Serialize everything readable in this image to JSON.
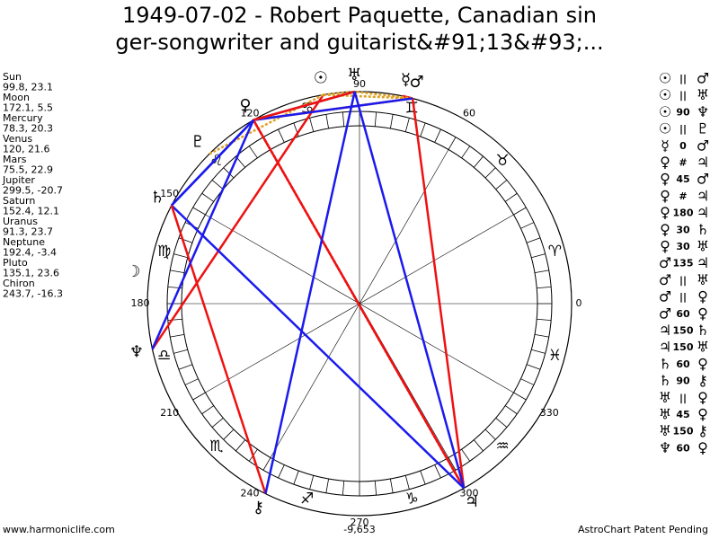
{
  "title_lines": [
    "1949-07-02 - Robert Paquette, Canadian sin",
    "ger-songwriter and guitarist&#91;13&#93;..."
  ],
  "planets": [
    {
      "name": "Sun",
      "glyph": "☉",
      "longitude": 99.8,
      "latitude": 23.1
    },
    {
      "name": "Moon",
      "glyph": "☽",
      "longitude": 172.1,
      "latitude": 5.5
    },
    {
      "name": "Mercury",
      "glyph": "☿",
      "longitude": 78.3,
      "latitude": 20.3
    },
    {
      "name": "Venus",
      "glyph": "♀",
      "longitude": 120.0,
      "latitude": 21.6
    },
    {
      "name": "Mars",
      "glyph": "♂",
      "longitude": 75.5,
      "latitude": 22.9
    },
    {
      "name": "Jupiter",
      "glyph": "♃",
      "longitude": 299.5,
      "latitude": -20.7
    },
    {
      "name": "Saturn",
      "glyph": "♄",
      "longitude": 152.4,
      "latitude": 12.1
    },
    {
      "name": "Uranus",
      "glyph": "♅",
      "longitude": 91.3,
      "latitude": 23.7
    },
    {
      "name": "Neptune",
      "glyph": "♆",
      "longitude": 192.4,
      "latitude": -3.4
    },
    {
      "name": "Pluto",
      "glyph": "♇",
      "longitude": 135.1,
      "latitude": 23.6
    },
    {
      "name": "Chiron",
      "glyph": "⚷",
      "longitude": 243.7,
      "latitude": -16.3
    }
  ],
  "signs": [
    "♈",
    "♉",
    "♊",
    "♋",
    "♌",
    "♍",
    "♎",
    "♏",
    "♐",
    "♑",
    "♒",
    "♓"
  ],
  "degree_labels": [
    0,
    60,
    90,
    120,
    150,
    180,
    210,
    240,
    270,
    300,
    330
  ],
  "aspects": [
    {
      "from": "☉",
      "aspect": "||",
      "to": "♂",
      "color": "#e0a020",
      "dashed": true
    },
    {
      "from": "☉",
      "aspect": "||",
      "to": "♅",
      "color": "#e0a020",
      "dashed": true
    },
    {
      "from": "☉",
      "aspect": "90",
      "to": "♆",
      "color": "#ee1111",
      "dashed": false
    },
    {
      "from": "☉",
      "aspect": "||",
      "to": "♇",
      "color": "#e0a020",
      "dashed": true
    },
    {
      "from": "☿",
      "aspect": "0",
      "to": "♂",
      "color": "#ee1111",
      "dashed": false
    },
    {
      "from": "♀",
      "aspect": "#",
      "to": "♃",
      "color": "#ee1111",
      "dashed": true
    },
    {
      "from": "♀",
      "aspect": "45",
      "to": "♂",
      "color": "#ee1111",
      "dashed": false
    },
    {
      "from": "♀",
      "aspect": "#",
      "to": "♃",
      "color": "#ee1111",
      "dashed": true
    },
    {
      "from": "♀",
      "aspect": "180",
      "to": "♃",
      "color": "#ee1111",
      "dashed": false
    },
    {
      "from": "♀",
      "aspect": "30",
      "to": "♄",
      "color": "#1a1aee",
      "dashed": false
    },
    {
      "from": "♀",
      "aspect": "30",
      "to": "♅",
      "color": "#1a1aee",
      "dashed": false
    },
    {
      "from": "♂",
      "aspect": "135",
      "to": "♃",
      "color": "#ee1111",
      "dashed": false
    },
    {
      "from": "♂",
      "aspect": "||",
      "to": "♅",
      "color": "#e0a020",
      "dashed": true
    },
    {
      "from": "♂",
      "aspect": "||",
      "to": "♀",
      "color": "#e0a020",
      "dashed": true
    },
    {
      "from": "♂",
      "aspect": "60",
      "to": "♀",
      "color": "#1a1aee",
      "dashed": false
    },
    {
      "from": "♃",
      "aspect": "150",
      "to": "♄",
      "color": "#1a1aee",
      "dashed": false
    },
    {
      "from": "♃",
      "aspect": "150",
      "to": "♅",
      "color": "#1a1aee",
      "dashed": false
    },
    {
      "from": "♄",
      "aspect": "60",
      "to": "♀",
      "color": "#1a1aee",
      "dashed": false
    },
    {
      "from": "♄",
      "aspect": "90",
      "to": "⚷",
      "color": "#ee1111",
      "dashed": false
    },
    {
      "from": "♅",
      "aspect": "||",
      "to": "♀",
      "color": "#e0a020",
      "dashed": true
    },
    {
      "from": "♅",
      "aspect": "45",
      "to": "♀",
      "color": "#ee1111",
      "dashed": false
    },
    {
      "from": "♅",
      "aspect": "150",
      "to": "⚷",
      "color": "#1a1aee",
      "dashed": false
    },
    {
      "from": "♆",
      "aspect": "60",
      "to": "♀",
      "color": "#1a1aee",
      "dashed": false
    }
  ],
  "chart_number": "-9,653",
  "footer_left": "www.harmoniclife.com",
  "footer_right": "AstroChart Patent Pending"
}
